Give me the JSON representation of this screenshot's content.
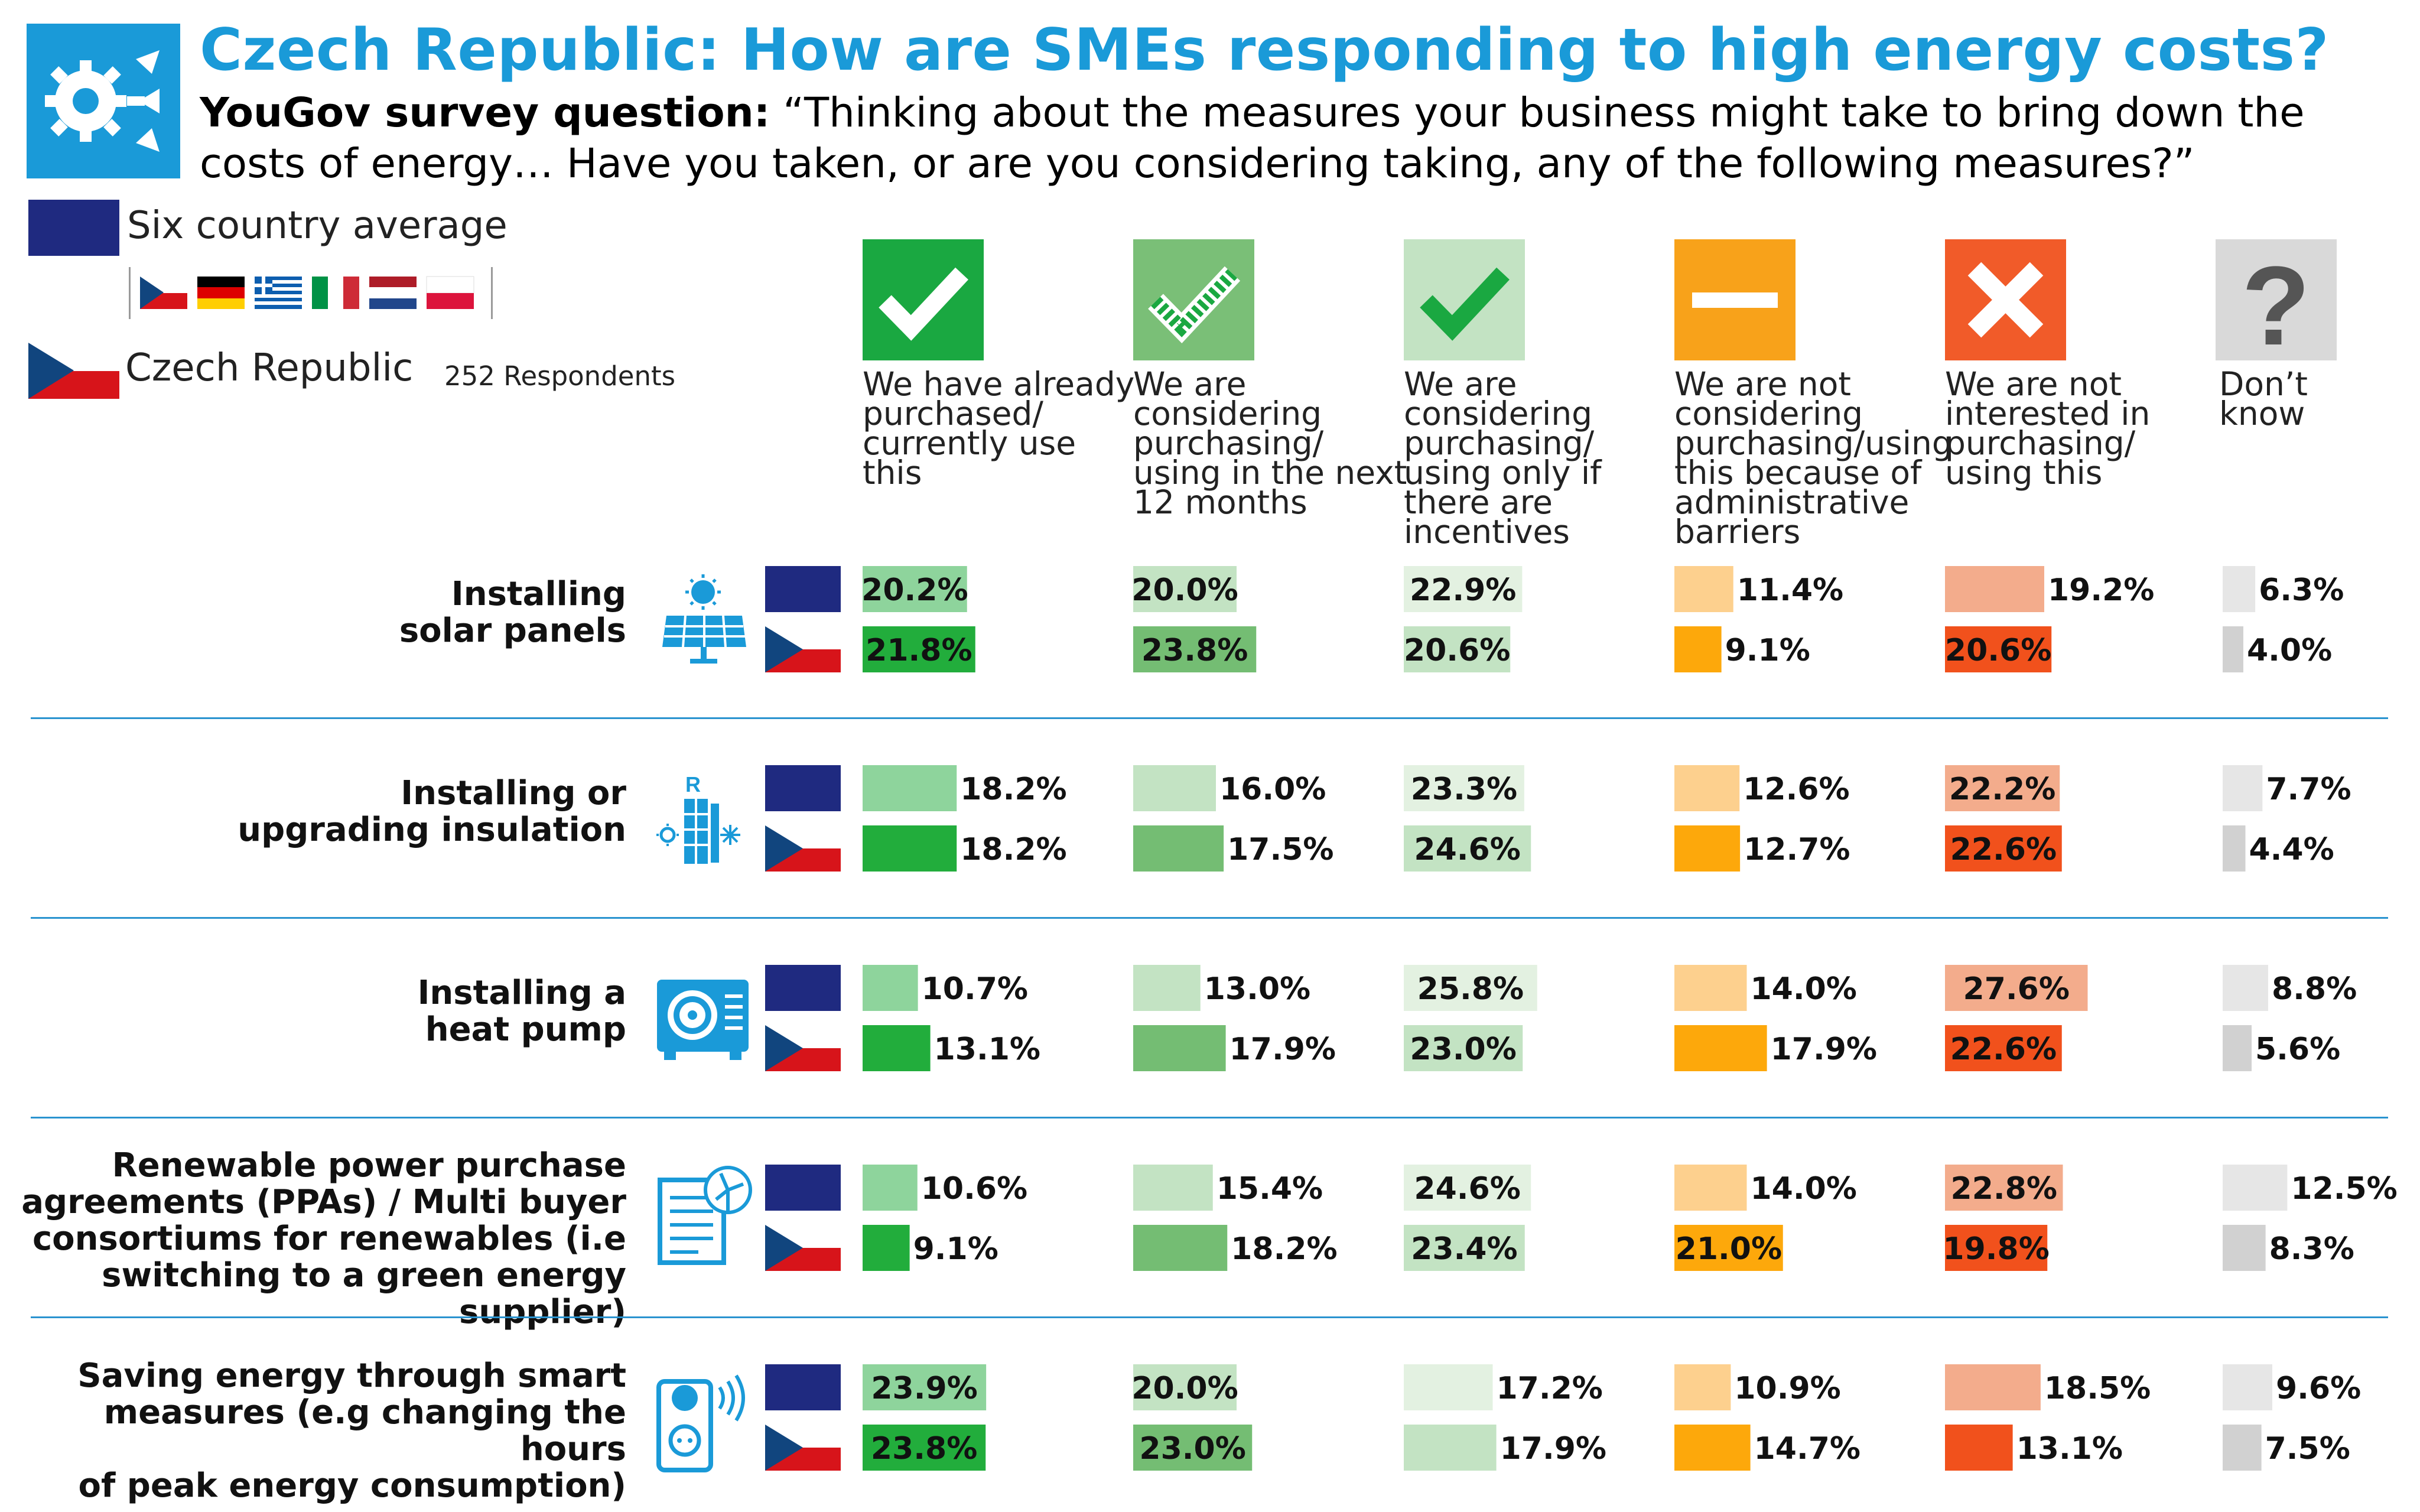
{
  "title": "Czech Republic: How are SMEs responding to high energy costs?",
  "subtitle_bold": "YouGov survey question:",
  "subtitle": "“Thinking about the measures your business might take to bring down the costs of energy… Have you taken, or are you considering taking, any of the following measures?”",
  "legend": {
    "average_label": "Six country average",
    "country_label": "Czech Republic",
    "respondents": "252 Respondents"
  },
  "icons": {
    "header": "gear-icon",
    "rows": [
      "solar-panel-icon",
      "insulation-icon",
      "heat-pump-icon",
      "ppa-document-icon",
      "smart-plug-icon"
    ],
    "columns": [
      "check-icon",
      "check-outline-icon",
      "check-icon",
      "minus-icon",
      "cross-icon",
      "question-icon"
    ]
  },
  "colors": {
    "title": "#1a9ad8",
    "separator": "#2a93cf",
    "eu_flag": "#1f2a80",
    "avg": [
      "#8ed49c",
      "#c3e3c3",
      "#e3f1e1",
      "#fdd08e",
      "#f3ac8c",
      "#e6e6e6"
    ],
    "cz": [
      "#22ad3c",
      "#74bd73",
      "#c3e3c3",
      "#fda80b",
      "#f1511c",
      "#d1d1d1"
    ],
    "icon_bg": [
      "#1aa841",
      "#7abf77",
      "#c3e3c3",
      "#f8a21a",
      "#f15b29",
      "#d9d9d9"
    ]
  },
  "chart_data": {
    "type": "bar",
    "columns": [
      "We have already purchased/ currently use this",
      "We are considering purchasing/ using in the next 12 months",
      "We are considering purchasing/ using only if there are incentives",
      "We are not considering purchasing/using this because of administrative barriers",
      "We are not interested in purchasing/ using this",
      "Don’t know"
    ],
    "series": [
      {
        "name": "Six country average",
        "rows": [
          [
            20.2,
            20.0,
            22.9,
            11.4,
            19.2,
            6.3
          ],
          [
            18.2,
            16.0,
            23.3,
            12.6,
            22.2,
            7.7
          ],
          [
            10.7,
            13.0,
            25.8,
            14.0,
            27.6,
            8.8
          ],
          [
            10.6,
            15.4,
            24.6,
            14.0,
            22.8,
            12.5
          ],
          [
            23.9,
            20.0,
            17.2,
            10.9,
            18.5,
            9.6
          ]
        ]
      },
      {
        "name": "Czech Republic",
        "rows": [
          [
            21.8,
            23.8,
            20.6,
            9.1,
            20.6,
            4.0
          ],
          [
            18.2,
            17.5,
            24.6,
            12.7,
            22.6,
            4.4
          ],
          [
            13.1,
            17.9,
            23.0,
            17.9,
            22.6,
            5.6
          ],
          [
            9.1,
            18.2,
            23.4,
            21.0,
            19.8,
            8.3
          ],
          [
            23.8,
            23.0,
            17.9,
            14.7,
            13.1,
            7.5
          ]
        ]
      }
    ],
    "row_labels": [
      "Installing solar panels",
      "Installing or upgrading insulation",
      "Installing a heat pump",
      "Renewable power purchase agreements (PPAs) / Multi buyer consortiums for renewables (i.e switching to a green energy supplier)",
      "Saving energy through smart measures (e.g changing the hours of peak energy consumption)"
    ],
    "units": "%"
  },
  "display": {
    "row_labels": [
      "Installing\nsolar panels",
      "Installing or\nupgrading insulation",
      "Installing a\nheat pump",
      "Renewable power purchase\nagreements (PPAs) / Multi buyer\nconsortiums for renewables (i.e\nswitching to a green energy supplier)",
      "Saving energy through smart\nmeasures (e.g changing the hours\nof peak energy consumption)"
    ],
    "column_headers": [
      "We have already\npurchased/\ncurrently use\nthis",
      "We are\nconsidering\npurchasing/\nusing in the next\n12 months",
      "We are\nconsidering\npurchasing/\nusing only if\nthere are\nincentives",
      "We are not\nconsidering\npurchasing/using\nthis because of\nadministrative\nbarriers",
      "We are not\ninterested in\npurchasing/\nusing this",
      "Don’t\nknow"
    ],
    "legend_flags": [
      "flag-cz",
      "flag-de",
      "flag-gr",
      "flag-it",
      "flag-nl",
      "flag-pl"
    ]
  }
}
